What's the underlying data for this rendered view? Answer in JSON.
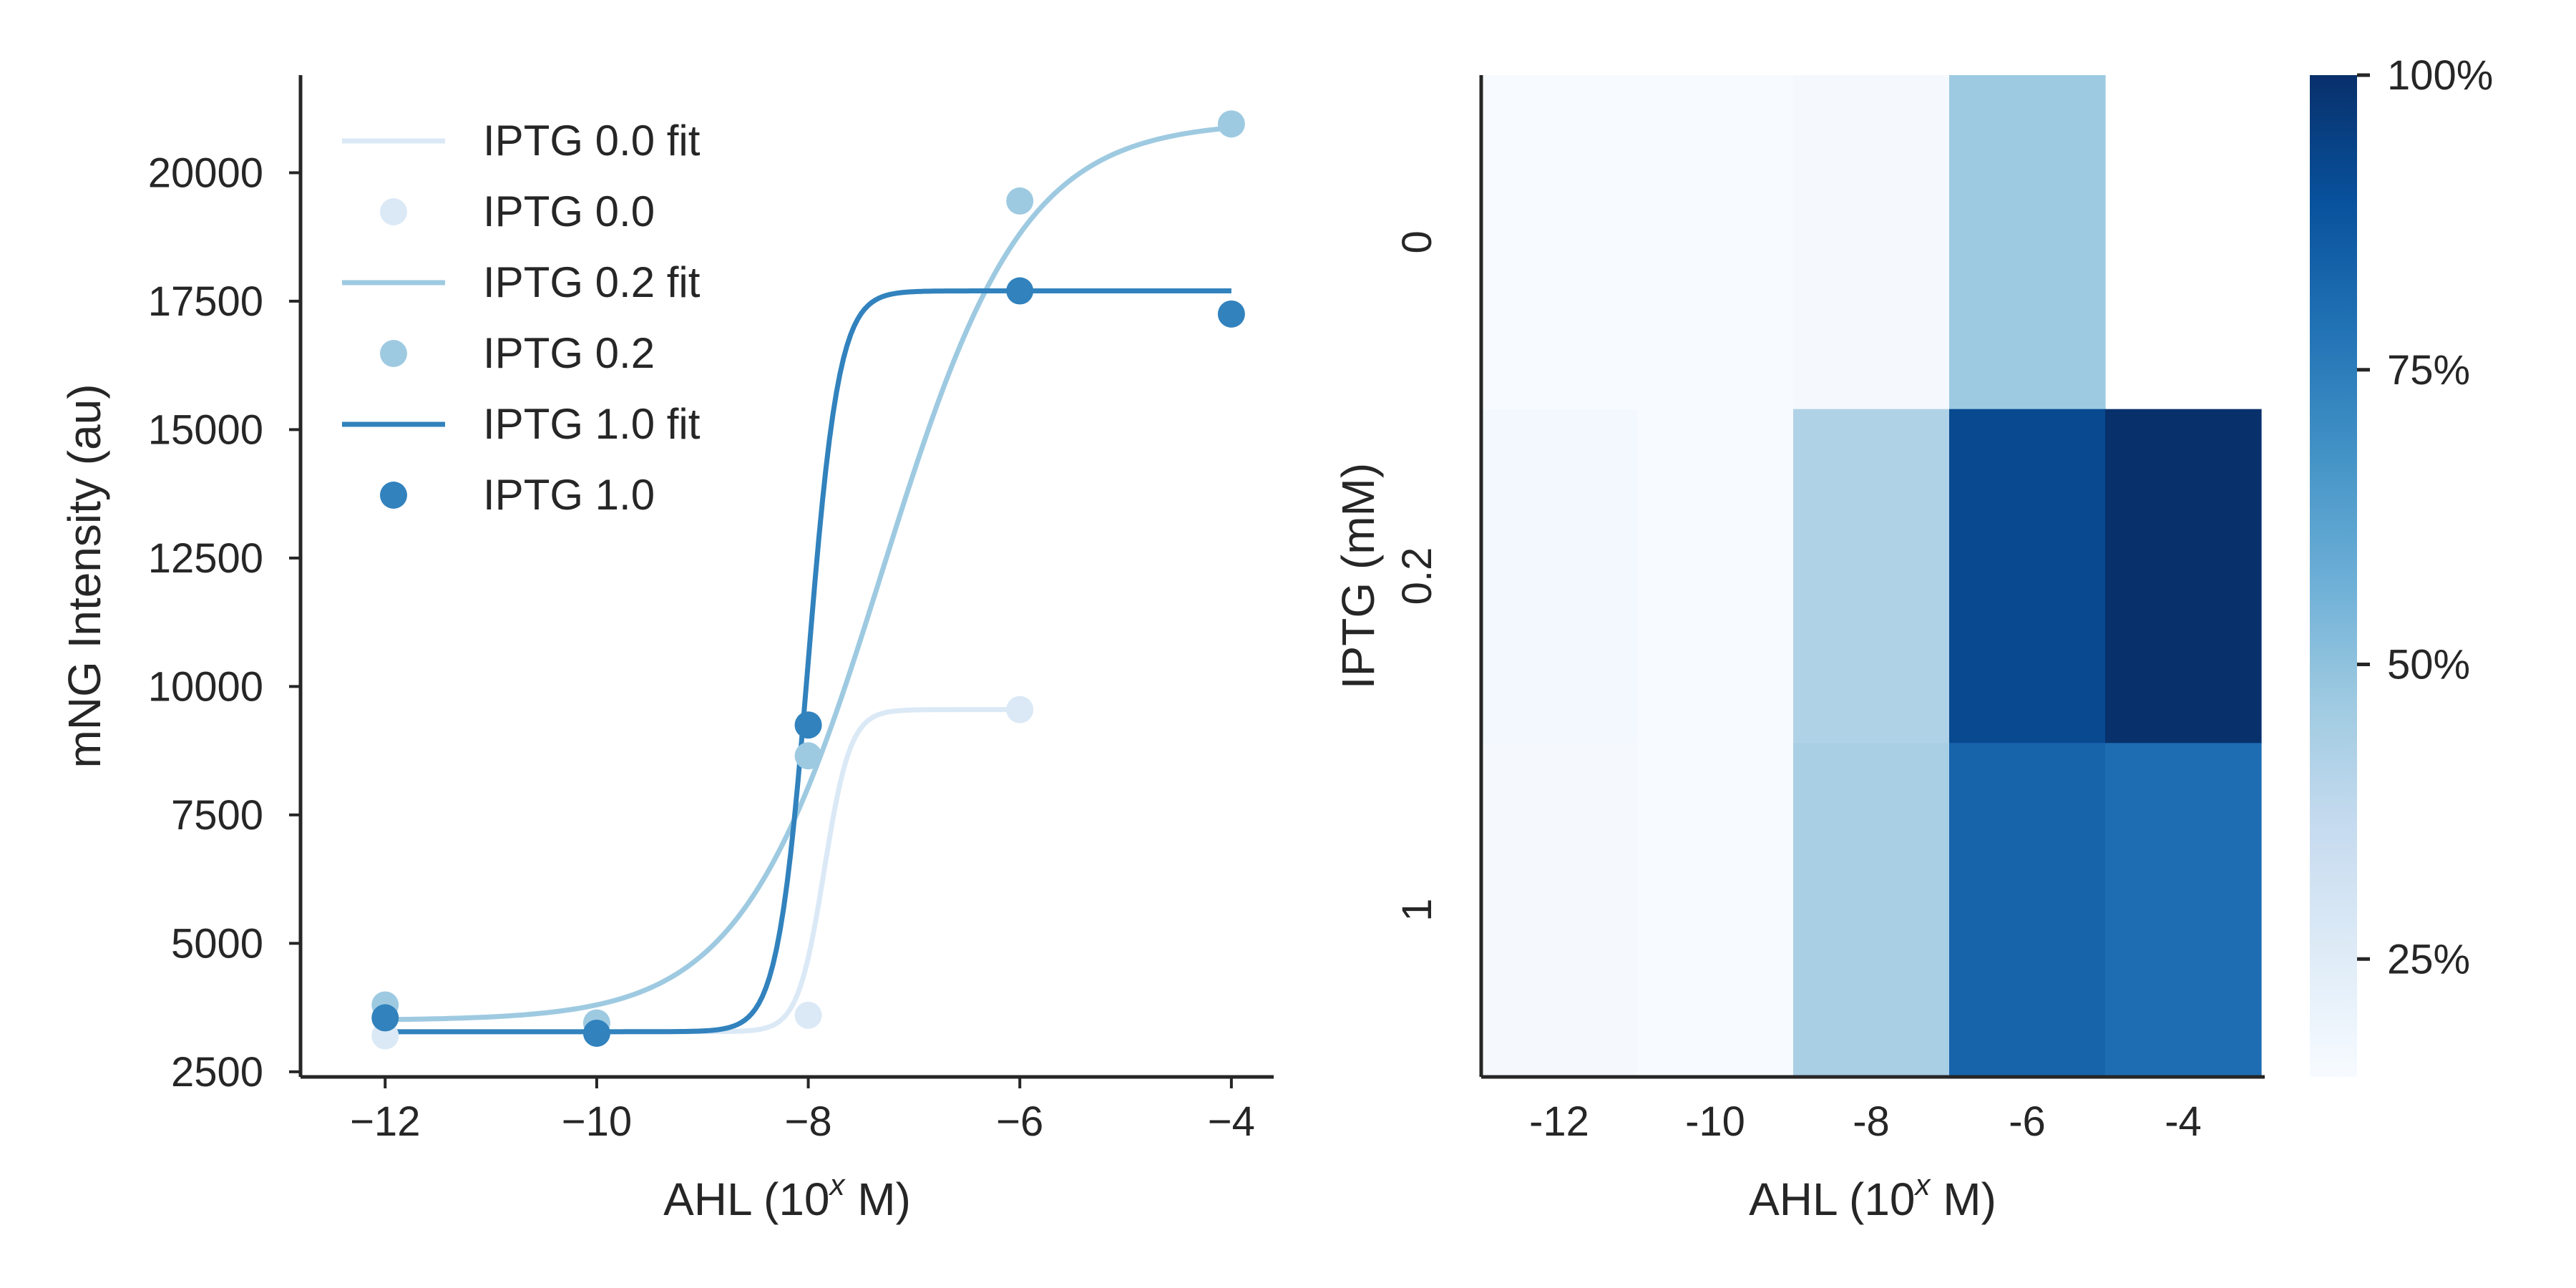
{
  "chart_data": [
    {
      "type": "line",
      "xlabel_main": "AHL (10",
      "xlabel_sup": "x",
      "xlabel_end": " M)",
      "ylabel": "mNG Intensity (au)",
      "xlim": [
        -12.8,
        -3.6
      ],
      "ylim": [
        2400,
        21900
      ],
      "xticks": [
        -12,
        -10,
        -8,
        -6,
        -4
      ],
      "xtick_labels": [
        "−12",
        "−10",
        "−8",
        "−6",
        "−4"
      ],
      "yticks": [
        2500,
        5000,
        7500,
        10000,
        12500,
        15000,
        17500,
        20000
      ],
      "ytick_labels": [
        "2500",
        "5000",
        "7500",
        "10000",
        "12500",
        "15000",
        "17500",
        "20000"
      ],
      "grid": false,
      "legend_position": "top-left",
      "series": [
        {
          "name": "IPTG 0.0",
          "fit_name": "IPTG 0.0 fit",
          "color": "#dbe9f6",
          "points": [
            [
              -12,
              3200
            ],
            [
              -8,
              3600
            ],
            [
              -6,
              9550
            ]
          ],
          "fit": {
            "bottom": 3280,
            "top": 9550,
            "x50": -7.85,
            "hill": 3.5,
            "x_start": -12,
            "x_end": -6
          }
        },
        {
          "name": "IPTG 0.2",
          "fit_name": "IPTG 0.2 fit",
          "color": "#9ecae1",
          "points": [
            [
              -12,
              3800
            ],
            [
              -10,
              3450
            ],
            [
              -8,
              8650
            ],
            [
              -6,
              19450
            ],
            [
              -4,
              20950
            ]
          ],
          "fit": {
            "bottom": 3500,
            "top": 21000,
            "x50": -7.3,
            "hill": 0.65,
            "x_start": -12,
            "x_end": -4
          }
        },
        {
          "name": "IPTG 1.0",
          "fit_name": "IPTG 1.0 fit",
          "color": "#3182bd",
          "points": [
            [
              -12,
              3550
            ],
            [
              -10,
              3250
            ],
            [
              -8,
              9250
            ],
            [
              -6,
              17700
            ],
            [
              -4,
              17250
            ]
          ],
          "fit": {
            "bottom": 3280,
            "top": 17700,
            "x50": -8.0,
            "hill": 3.0,
            "x_start": -12,
            "x_end": -4
          }
        }
      ]
    },
    {
      "type": "heatmap",
      "xlabel_main": "AHL (10",
      "xlabel_sup": "x",
      "xlabel_end": " M)",
      "ylabel": "IPTG (mM)",
      "x_categories": [
        "-12",
        "-10",
        "-8",
        "-6",
        "-4"
      ],
      "y_categories": [
        "0",
        "0.2",
        "1"
      ],
      "values_percent": [
        [
          15,
          15,
          16,
          47,
          null
        ],
        [
          17,
          15,
          42,
          92,
          100
        ],
        [
          16,
          15,
          44,
          83,
          80
        ]
      ],
      "colorbar": {
        "min": 15,
        "max": 100,
        "ticks": [
          25,
          50,
          75,
          100
        ],
        "tick_labels": [
          "25%",
          "50%",
          "75%",
          "100%"
        ],
        "colormap": "Blues"
      }
    }
  ]
}
